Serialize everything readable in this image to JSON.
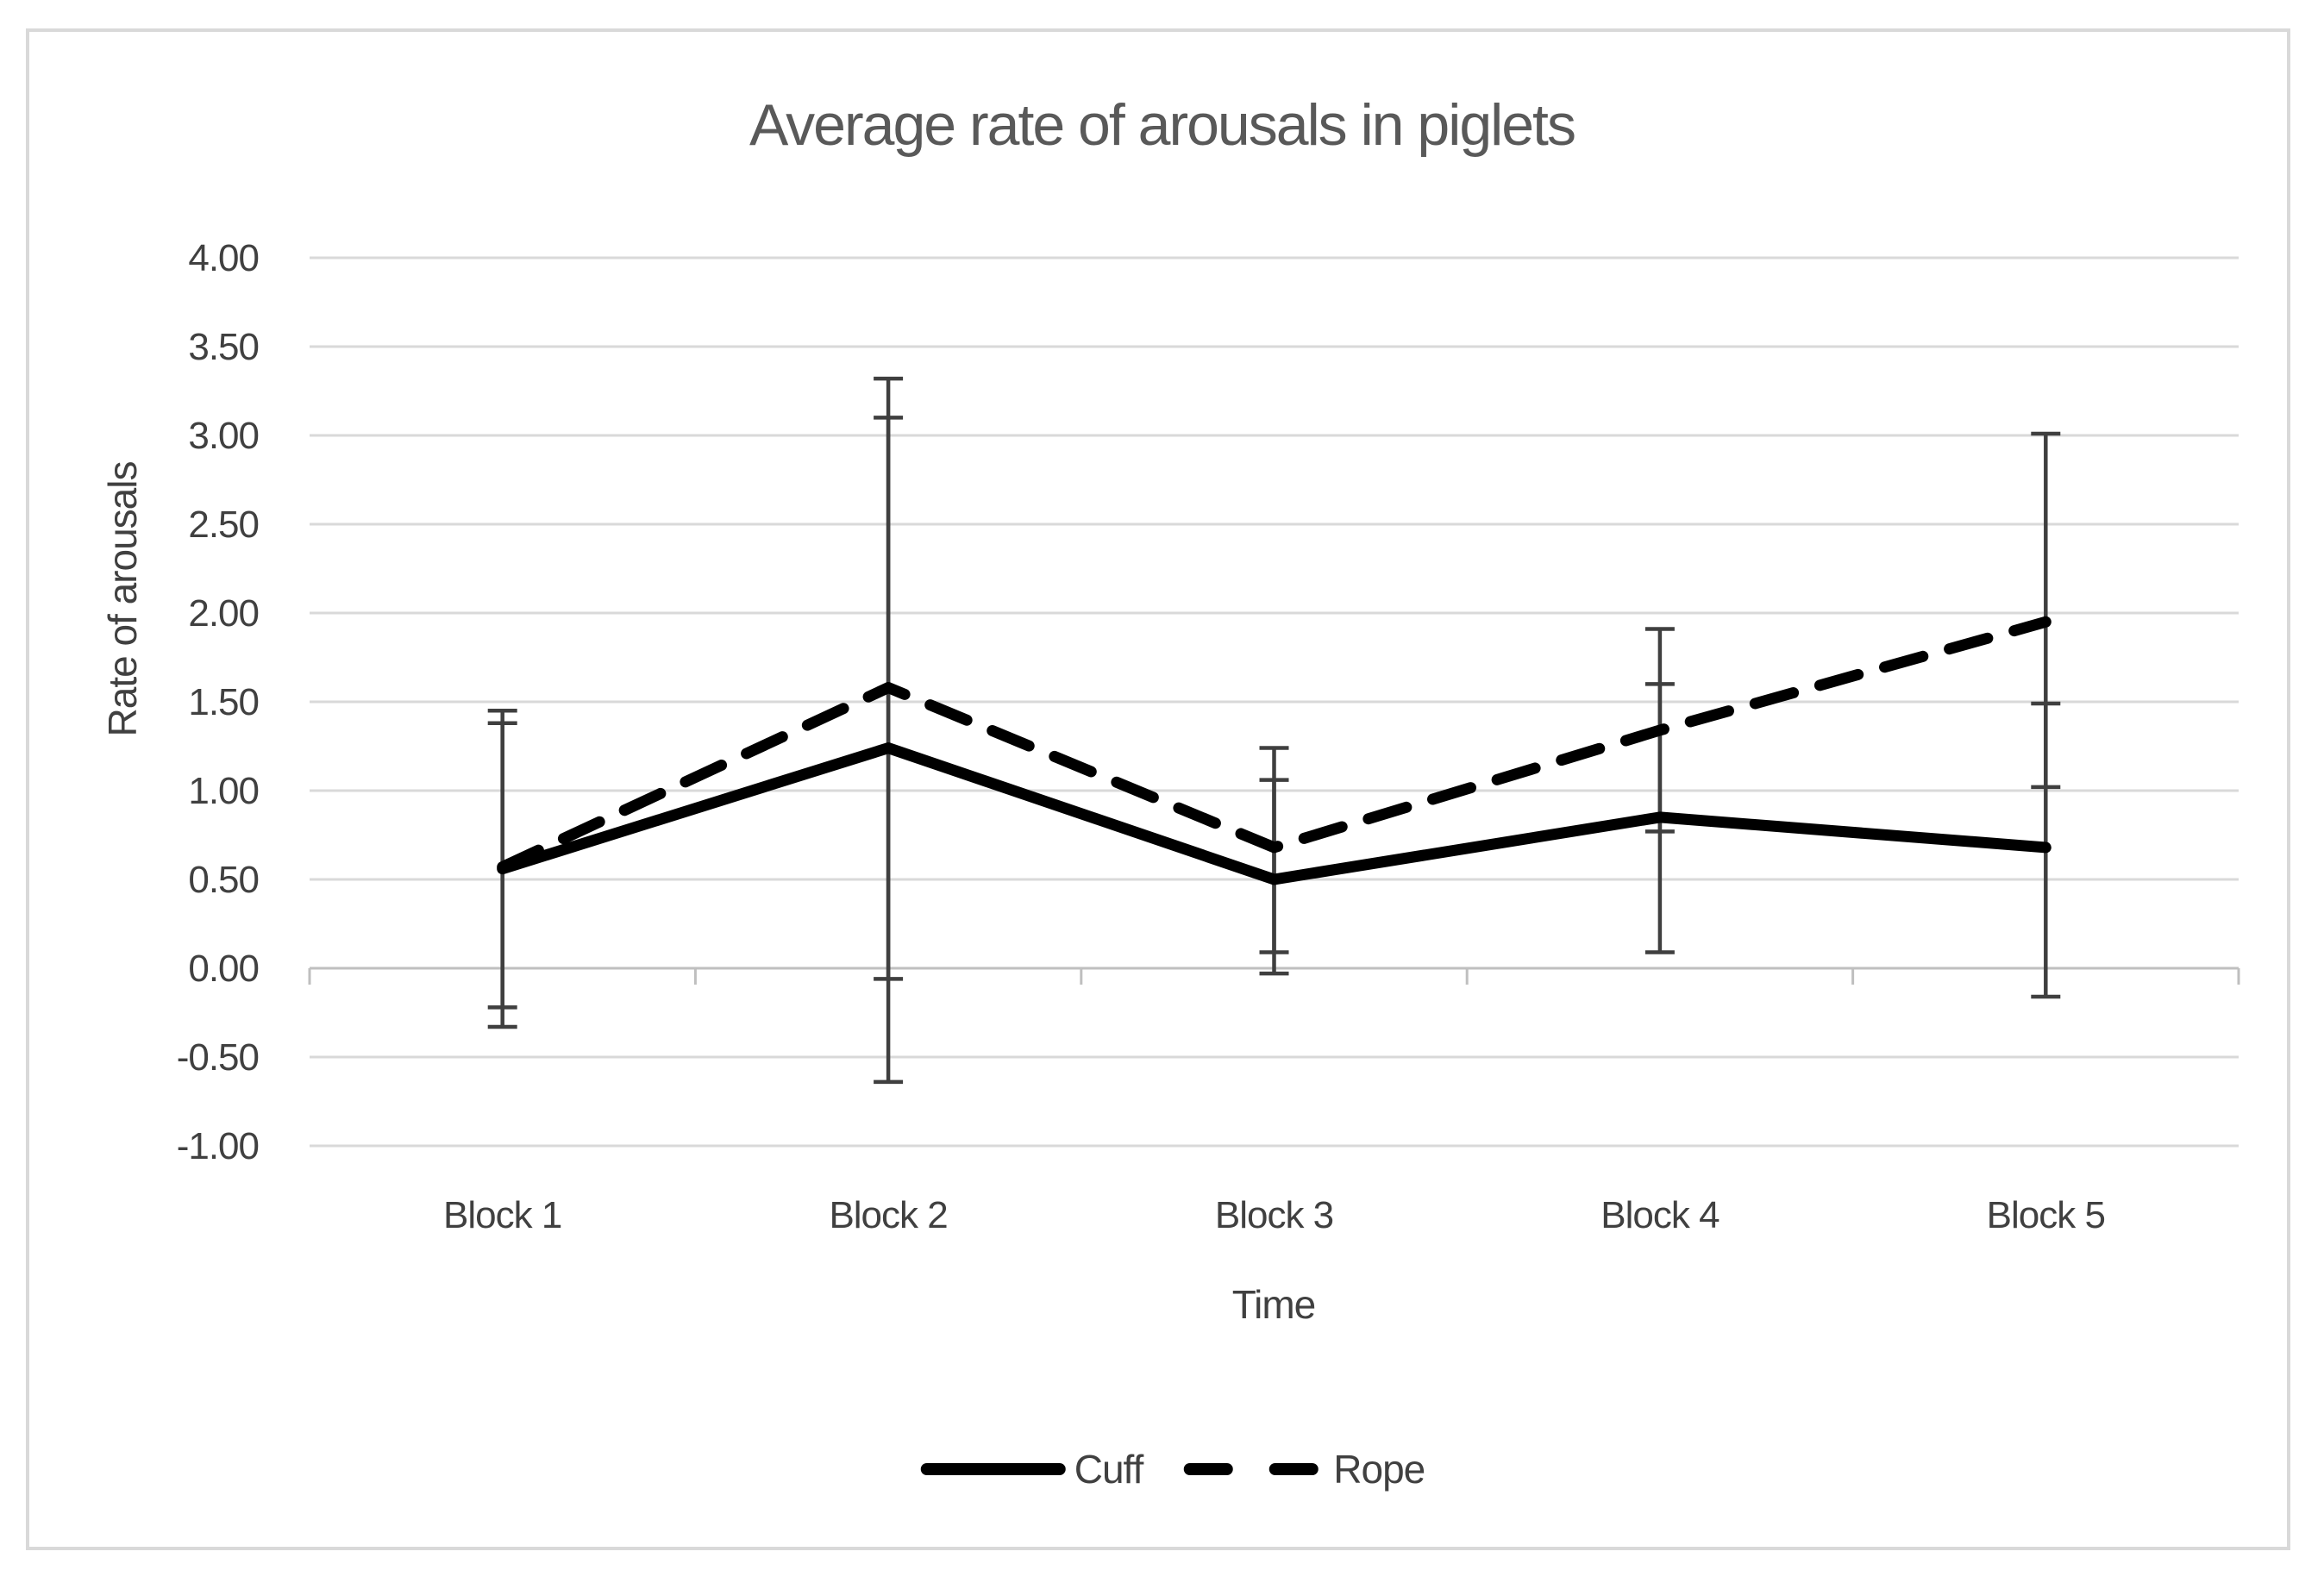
{
  "chart_data": {
    "type": "line",
    "title": "Average rate of arousals in piglets",
    "xlabel": "Time",
    "ylabel": "Rate of arousals",
    "categories": [
      "Block 1",
      "Block 2",
      "Block 3",
      "Block 4",
      "Block 5"
    ],
    "ylim": [
      -1.0,
      4.0
    ],
    "ytick_step": 0.5,
    "ytick_labels": [
      "4.00",
      "3.50",
      "3.00",
      "2.50",
      "2.00",
      "1.50",
      "1.00",
      "0.50",
      "0.00",
      "-0.50",
      "-1.00"
    ],
    "grid": true,
    "legend_position": "bottom",
    "series": [
      {
        "name": "Cuff",
        "style": "solid",
        "values": [
          0.56,
          1.24,
          0.5,
          0.85,
          0.68
        ],
        "error_lo": [
          -0.22,
          -0.64,
          -0.03,
          0.09,
          -0.16
        ],
        "error_hi": [
          1.38,
          3.1,
          1.06,
          1.6,
          1.49
        ]
      },
      {
        "name": "Rope",
        "style": "dashed",
        "values": [
          0.57,
          1.58,
          0.68,
          1.34,
          1.95
        ],
        "error_lo": [
          -0.33,
          -0.06,
          0.09,
          0.77,
          1.02
        ],
        "error_hi": [
          1.45,
          3.32,
          1.24,
          1.91,
          3.01
        ]
      }
    ],
    "colors": {
      "series": "#000000",
      "grid": "#d9d9d9",
      "axis": "#bfbfbf",
      "error_bar": "#3f3f3f",
      "title": "#595959",
      "text": "#404040"
    }
  }
}
